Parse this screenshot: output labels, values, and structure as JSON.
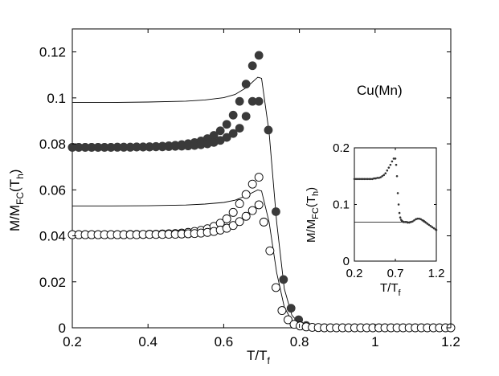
{
  "chart_data": [
    {
      "id": "main",
      "type": "scatter",
      "title": "",
      "xlabel": "T/T",
      "xlabel_sub": "f",
      "ylabel": "M/M",
      "ylabel_sub": "FC",
      "ylabel_tail": "(T",
      "ylabel_tail_sub": "h",
      "ylabel_close": ")",
      "xlim": [
        0.2,
        1.2
      ],
      "ylim": [
        0,
        0.13
      ],
      "xticks": [
        0.2,
        0.4,
        0.6,
        0.8,
        1.0,
        1.2
      ],
      "xtick_labels": [
        "0.2",
        "0.4",
        "0.6",
        "0.8",
        "1",
        "1.2"
      ],
      "yticks": [
        0,
        0.02,
        0.04,
        0.06,
        0.08,
        0.1,
        0.12
      ],
      "ytick_labels": [
        "0",
        "0.02",
        "0.04",
        "0.06",
        "0.08",
        "0.1",
        "0.12"
      ],
      "annotation": "Cu(Mn)",
      "series": [
        {
          "name": "filled upper branch",
          "marker": "filled-circle",
          "x": [
            0.2,
            0.217,
            0.234,
            0.251,
            0.268,
            0.285,
            0.302,
            0.319,
            0.336,
            0.353,
            0.37,
            0.387,
            0.404,
            0.421,
            0.438,
            0.455,
            0.472,
            0.489,
            0.506,
            0.523,
            0.54,
            0.557,
            0.574,
            0.591,
            0.608,
            0.625,
            0.642,
            0.659,
            0.676,
            0.693
          ],
          "y": [
            0.0785,
            0.0785,
            0.0785,
            0.0785,
            0.0785,
            0.0785,
            0.0785,
            0.0786,
            0.0786,
            0.0786,
            0.0787,
            0.0787,
            0.0788,
            0.0789,
            0.079,
            0.0792,
            0.0794,
            0.0797,
            0.0801,
            0.0806,
            0.0813,
            0.0823,
            0.0837,
            0.0857,
            0.0885,
            0.0925,
            0.0985,
            0.106,
            0.114,
            0.1185
          ]
        },
        {
          "name": "filled lower branch",
          "marker": "filled-circle",
          "x": [
            0.2,
            0.217,
            0.234,
            0.251,
            0.268,
            0.285,
            0.302,
            0.319,
            0.336,
            0.353,
            0.37,
            0.387,
            0.404,
            0.421,
            0.438,
            0.455,
            0.472,
            0.489,
            0.506,
            0.523,
            0.54,
            0.557,
            0.574,
            0.591,
            0.608,
            0.625,
            0.642,
            0.659,
            0.676,
            0.693,
            0.718,
            0.738,
            0.758,
            0.778,
            0.798,
            0.818
          ],
          "y": [
            0.0785,
            0.0785,
            0.0785,
            0.0785,
            0.0785,
            0.0785,
            0.0785,
            0.0785,
            0.0785,
            0.0785,
            0.0786,
            0.0786,
            0.0786,
            0.0787,
            0.0787,
            0.0788,
            0.0789,
            0.079,
            0.0791,
            0.0793,
            0.0796,
            0.08,
            0.0806,
            0.0815,
            0.0828,
            0.0845,
            0.0868,
            0.092,
            0.0985,
            0.0985,
            0.086,
            0.0505,
            0.021,
            0.0085,
            0.0035,
            0.001
          ]
        },
        {
          "name": "open upper branch",
          "marker": "open-circle",
          "x": [
            0.2,
            0.217,
            0.234,
            0.251,
            0.268,
            0.285,
            0.302,
            0.319,
            0.336,
            0.353,
            0.37,
            0.387,
            0.404,
            0.421,
            0.438,
            0.455,
            0.472,
            0.489,
            0.506,
            0.523,
            0.54,
            0.557,
            0.574,
            0.591,
            0.608,
            0.625,
            0.642,
            0.659,
            0.676,
            0.693
          ],
          "y": [
            0.0405,
            0.0405,
            0.0405,
            0.0405,
            0.0405,
            0.0405,
            0.0405,
            0.0405,
            0.0405,
            0.0406,
            0.0406,
            0.0406,
            0.0407,
            0.0407,
            0.0408,
            0.0409,
            0.041,
            0.0412,
            0.0415,
            0.0419,
            0.0424,
            0.0431,
            0.0441,
            0.0455,
            0.0474,
            0.0502,
            0.054,
            0.058,
            0.0625,
            0.0655
          ]
        },
        {
          "name": "open lower branch",
          "marker": "open-circle",
          "x": [
            0.2,
            0.217,
            0.234,
            0.251,
            0.268,
            0.285,
            0.302,
            0.319,
            0.336,
            0.353,
            0.37,
            0.387,
            0.404,
            0.421,
            0.438,
            0.455,
            0.472,
            0.489,
            0.506,
            0.523,
            0.54,
            0.557,
            0.574,
            0.591,
            0.608,
            0.625,
            0.642,
            0.659,
            0.676,
            0.693,
            0.706,
            0.722,
            0.738,
            0.754,
            0.77,
            0.786,
            0.802,
            0.818,
            0.834,
            0.85,
            0.866,
            0.882,
            0.898,
            0.914,
            0.93,
            0.946,
            0.962,
            0.978,
            0.994,
            1.01,
            1.026,
            1.042,
            1.058,
            1.074,
            1.09,
            1.106,
            1.122,
            1.138,
            1.154,
            1.17,
            1.186,
            1.2
          ],
          "y": [
            0.0405,
            0.0405,
            0.0405,
            0.0405,
            0.0405,
            0.0405,
            0.0405,
            0.0405,
            0.0405,
            0.0405,
            0.0405,
            0.0406,
            0.0406,
            0.0406,
            0.0406,
            0.0407,
            0.0407,
            0.0408,
            0.0409,
            0.041,
            0.0412,
            0.0415,
            0.0419,
            0.0425,
            0.0433,
            0.0445,
            0.0462,
            0.0485,
            0.051,
            0.0535,
            0.046,
            0.0335,
            0.0175,
            0.0075,
            0.0035,
            0.0015,
            0.0008,
            0.0004,
            0.0002,
            0.0001,
            0,
            0,
            0,
            0,
            0,
            0,
            0,
            0,
            0,
            0,
            0,
            0,
            0,
            0,
            0,
            0,
            0,
            0,
            0,
            0,
            0,
            0
          ]
        }
      ],
      "lines": [
        {
          "name": "upper solid curve",
          "x": [
            0.2,
            0.3,
            0.4,
            0.5,
            0.55,
            0.6,
            0.63,
            0.66,
            0.69,
            0.7,
            0.72,
            0.74,
            0.76,
            0.78,
            0.8,
            0.83,
            0.9,
            1.0,
            1.2
          ],
          "y": [
            0.098,
            0.098,
            0.0982,
            0.0986,
            0.0991,
            0.1001,
            0.1015,
            0.1045,
            0.109,
            0.1085,
            0.085,
            0.046,
            0.017,
            0.0055,
            0.0018,
            0.0005,
            0,
            0,
            0
          ]
        },
        {
          "name": "lower solid curve",
          "x": [
            0.2,
            0.3,
            0.4,
            0.5,
            0.55,
            0.6,
            0.63,
            0.66,
            0.69,
            0.7,
            0.72,
            0.74,
            0.76,
            0.78,
            0.8,
            0.83,
            0.9,
            1.0,
            1.2
          ],
          "y": [
            0.053,
            0.053,
            0.0531,
            0.0534,
            0.0538,
            0.0545,
            0.0555,
            0.0575,
            0.06,
            0.0595,
            0.046,
            0.024,
            0.009,
            0.003,
            0.001,
            0.0003,
            0,
            0,
            0
          ]
        }
      ]
    },
    {
      "id": "inset",
      "type": "scatter",
      "xlabel": "T/T",
      "xlabel_sub": "f",
      "ylabel": "M/M",
      "ylabel_sub": "FC",
      "ylabel_tail": "(T",
      "ylabel_tail_sub": "h",
      "ylabel_close": ")",
      "xlim": [
        0.2,
        1.2
      ],
      "ylim": [
        0,
        0.2
      ],
      "xticks": [
        0.2,
        0.7,
        1.2
      ],
      "xtick_labels": [
        "0.2",
        "0.7",
        "1.2"
      ],
      "yticks": [
        0,
        0.1,
        0.2
      ],
      "ytick_labels": [
        "0",
        "0.1",
        "0.2"
      ],
      "series": [
        {
          "name": "inset upper dots",
          "marker": "small-dot",
          "x": [
            0.2,
            0.22,
            0.24,
            0.26,
            0.28,
            0.3,
            0.32,
            0.34,
            0.36,
            0.38,
            0.4,
            0.42,
            0.44,
            0.46,
            0.48,
            0.5,
            0.52,
            0.54,
            0.56,
            0.58,
            0.6,
            0.62,
            0.64,
            0.66,
            0.68,
            0.7,
            0.71,
            0.72,
            0.73,
            0.74,
            0.75,
            0.76,
            0.77,
            0.78,
            0.79,
            0.8,
            0.82,
            0.84
          ],
          "y": [
            0.145,
            0.145,
            0.145,
            0.145,
            0.145,
            0.145,
            0.145,
            0.145,
            0.145,
            0.145,
            0.145,
            0.145,
            0.146,
            0.146,
            0.147,
            0.147,
            0.148,
            0.15,
            0.152,
            0.155,
            0.16,
            0.165,
            0.17,
            0.176,
            0.181,
            0.181,
            0.17,
            0.15,
            0.12,
            0.1,
            0.085,
            0.077,
            0.073,
            0.071,
            0.07,
            0.069,
            0.069,
            0.069
          ]
        },
        {
          "name": "inset lower dots",
          "marker": "small-dot",
          "x": [
            0.85,
            0.87,
            0.89,
            0.91,
            0.93,
            0.95,
            0.97,
            0.99,
            1.01,
            1.03,
            1.05,
            1.07,
            1.09,
            1.11,
            1.13,
            1.15,
            1.17,
            1.19,
            1.2
          ],
          "y": [
            0.068,
            0.068,
            0.069,
            0.07,
            0.072,
            0.074,
            0.075,
            0.075,
            0.074,
            0.072,
            0.07,
            0.068,
            0.066,
            0.064,
            0.062,
            0.06,
            0.058,
            0.056,
            0.055
          ]
        }
      ],
      "lines": [
        {
          "name": "inset flat line",
          "x": [
            0.2,
            0.4,
            0.6,
            0.8,
            0.85,
            0.9,
            0.95,
            1.0,
            1.05,
            1.1,
            1.15,
            1.2
          ],
          "y": [
            0.069,
            0.069,
            0.069,
            0.069,
            0.069,
            0.07,
            0.073,
            0.075,
            0.072,
            0.066,
            0.06,
            0.055
          ]
        }
      ]
    }
  ]
}
